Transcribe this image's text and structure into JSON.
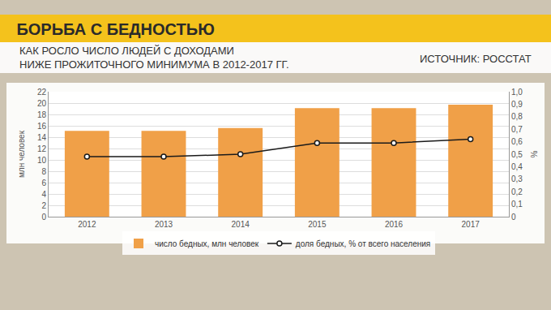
{
  "chart_data": {
    "type": "bar",
    "title": "БОРЬБА С БЕДНОСТЬЮ",
    "subtitle": "КАК РОСЛО ЧИСЛО ЛЮДЕЙ С ДОХОДАМИ\nНИЖЕ ПРОЖИТОЧНОГО МИНИМУМА В 2012-2017 ГГ.",
    "source": "ИСТОЧНИК: РОССТАТ",
    "categories": [
      "2012",
      "2013",
      "2014",
      "2015",
      "2016",
      "2017"
    ],
    "series": [
      {
        "name": "число бедных, млн человек",
        "type": "bar",
        "color": "#f0a048",
        "values": [
          15.1,
          15.1,
          15.6,
          19.1,
          19.1,
          19.7
        ]
      },
      {
        "name": "доля бедных, % от всего населения",
        "type": "line",
        "axis": "y2",
        "color": "#1a1a1a",
        "marker": "circle",
        "values": [
          0.48,
          0.48,
          0.5,
          0.59,
          0.59,
          0.62
        ]
      }
    ],
    "ylabel": "млн человек",
    "y2label": "%",
    "ylim": [
      0,
      22
    ],
    "yticks": [
      0,
      2,
      4,
      6,
      8,
      10,
      12,
      14,
      16,
      18,
      20,
      22
    ],
    "y2lim": [
      0,
      1
    ],
    "y2ticks": [
      0,
      {
        "value": 0.1,
        "label": "0,1"
      },
      {
        "value": 0.2,
        "label": "0,2"
      },
      {
        "value": 0.3,
        "label": "0,3"
      },
      {
        "value": 0.4,
        "label": "0,4"
      },
      {
        "value": 0.5,
        "label": "0,5"
      },
      {
        "value": 0.6,
        "label": "0,6"
      },
      {
        "value": 0.7,
        "label": "0,7"
      },
      {
        "value": 0.8,
        "label": "0,8"
      },
      {
        "value": 0.9,
        "label": "0,9"
      },
      {
        "value": 1,
        "label": "1,0"
      }
    ],
    "grid": true,
    "legend": "bottom"
  }
}
